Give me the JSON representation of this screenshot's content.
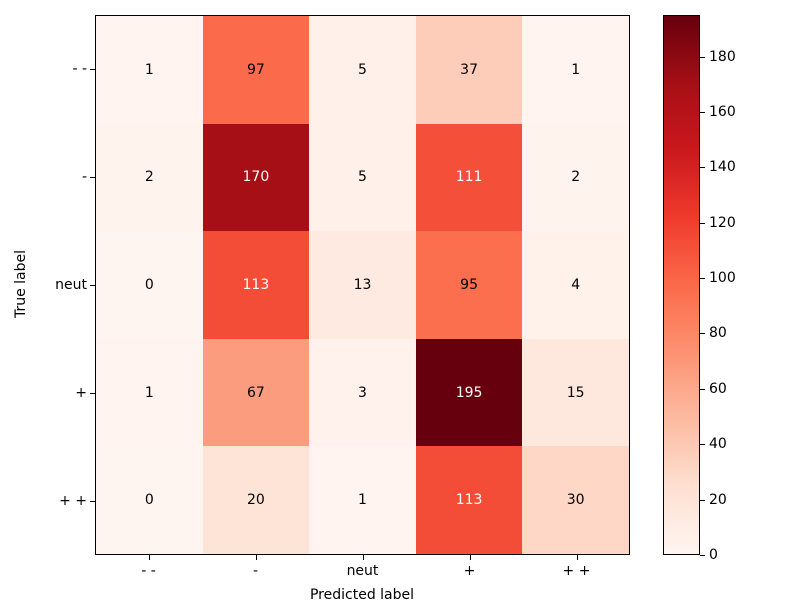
{
  "chart_data": {
    "type": "heatmap",
    "title": "",
    "xlabel": "Predicted label",
    "ylabel": "True label",
    "x_tick_labels": [
      "- -",
      "-",
      "neut",
      "+",
      "+ +"
    ],
    "y_tick_labels": [
      "- -",
      "-",
      "neut",
      "+",
      "+ +"
    ],
    "matrix": [
      [
        1,
        97,
        5,
        37,
        1
      ],
      [
        2,
        170,
        5,
        111,
        2
      ],
      [
        0,
        113,
        13,
        95,
        4
      ],
      [
        1,
        67,
        3,
        195,
        15
      ],
      [
        0,
        20,
        1,
        113,
        30
      ]
    ],
    "vmin": 0,
    "vmax": 195,
    "colormap": "Reds",
    "colormap_stops": [
      "#fff5f0",
      "#fee0d2",
      "#fcbba1",
      "#fc9272",
      "#fb6a4a",
      "#ef3b2c",
      "#cb181d",
      "#a50f15",
      "#67000d"
    ],
    "cell_text_colors": {
      "low": "#000000",
      "high": "#ffffff"
    },
    "colorbar_ticks": [
      0,
      20,
      40,
      60,
      80,
      100,
      120,
      140,
      160,
      180
    ],
    "legend_position": "right-colorbar",
    "grid": false
  }
}
